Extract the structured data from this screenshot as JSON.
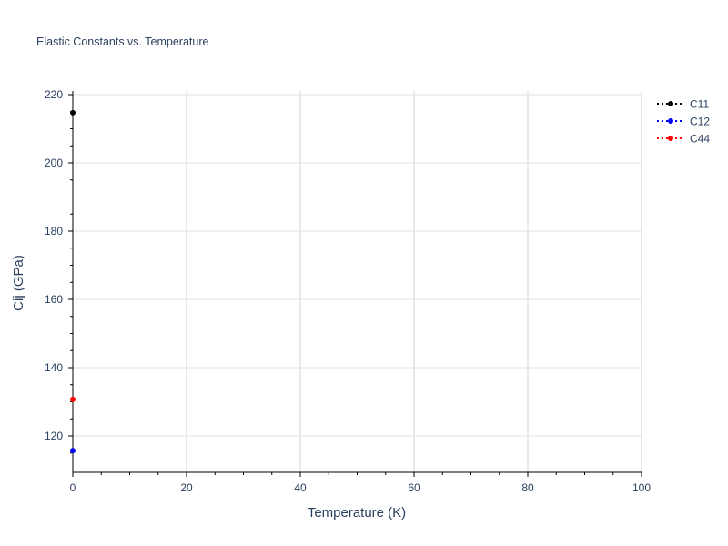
{
  "chart_data": {
    "type": "scatter",
    "title": "Elastic Constants vs. Temperature",
    "xlabel": "Temperature (K)",
    "ylabel": "Cij (GPa)",
    "xlim": [
      0,
      100
    ],
    "ylim": [
      109.3,
      221
    ],
    "xticks": [
      0,
      20,
      40,
      60,
      80,
      100
    ],
    "yticks": [
      120,
      140,
      160,
      180,
      200,
      220
    ],
    "grid": true,
    "legend_position": "top-right",
    "series": [
      {
        "name": "C11",
        "color": "#000000",
        "line": "dotted",
        "x": [
          0
        ],
        "y": [
          214.7
        ]
      },
      {
        "name": "C12",
        "color": "#0000ff",
        "line": "dotted",
        "x": [
          0
        ],
        "y": [
          115.7
        ]
      },
      {
        "name": "C44",
        "color": "#ff0000",
        "line": "dotted",
        "x": [
          0
        ],
        "y": [
          130.7
        ]
      }
    ]
  }
}
